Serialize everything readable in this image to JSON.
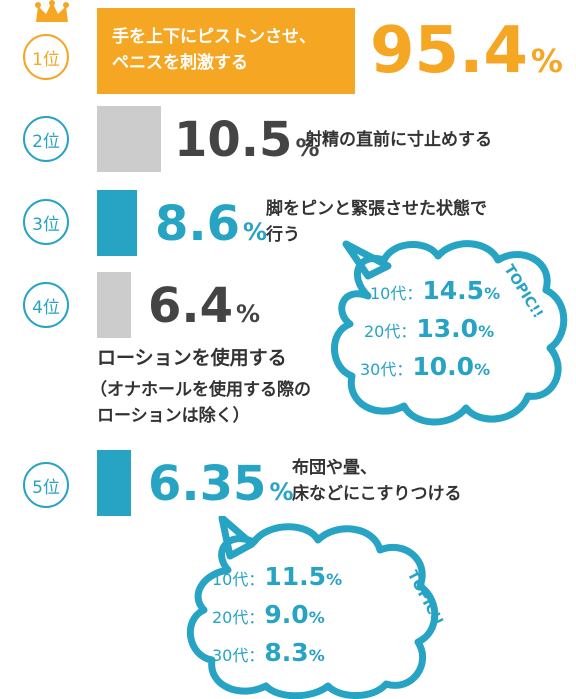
{
  "colors": {
    "gold": "#f5a623",
    "blue": "#27a3c4",
    "gray": "#cccccc",
    "dark": "#444444",
    "bubble": "#27a3c4"
  },
  "chart_data": {
    "type": "bar",
    "orientation": "horizontal",
    "unit": "%",
    "items": [
      {
        "rank": "1位",
        "value": 95.4,
        "value_text": "95.4",
        "label_lines": [
          "手を上下にピストンさせ、",
          "ペニスを刺激する"
        ],
        "color": "gold"
      },
      {
        "rank": "2位",
        "value": 10.5,
        "value_text": "10.5",
        "label_lines": [
          "射精の直前に寸止めする"
        ],
        "color": "gray"
      },
      {
        "rank": "3位",
        "value": 8.6,
        "value_text": "8.6",
        "label_lines": [
          "脚をピンと緊張させた状態で",
          "行う"
        ],
        "color": "blue"
      },
      {
        "rank": "4位",
        "value": 6.4,
        "value_text": "6.4",
        "label_lines": [
          "ローションを使用する",
          "（オナホールを使用する際の",
          "ローションは除く）"
        ],
        "color": "gray"
      },
      {
        "rank": "5位",
        "value": 6.35,
        "value_text": "6.35",
        "label_lines": [
          "布団や畳、",
          "床などにこすりつける"
        ],
        "color": "blue"
      }
    ]
  },
  "topic_label": "TOPIC!!",
  "topics": [
    {
      "rows": [
        {
          "age": "10代",
          "value": "14.5",
          "unit": "%"
        },
        {
          "age": "20代",
          "value": "13.0",
          "unit": "%"
        },
        {
          "age": "30代",
          "value": "10.0",
          "unit": "%"
        }
      ]
    },
    {
      "rows": [
        {
          "age": "10代",
          "value": "11.5",
          "unit": "%"
        },
        {
          "age": "20代",
          "value": "9.0",
          "unit": "%"
        },
        {
          "age": "30代",
          "value": "8.3",
          "unit": "%"
        }
      ]
    }
  ]
}
